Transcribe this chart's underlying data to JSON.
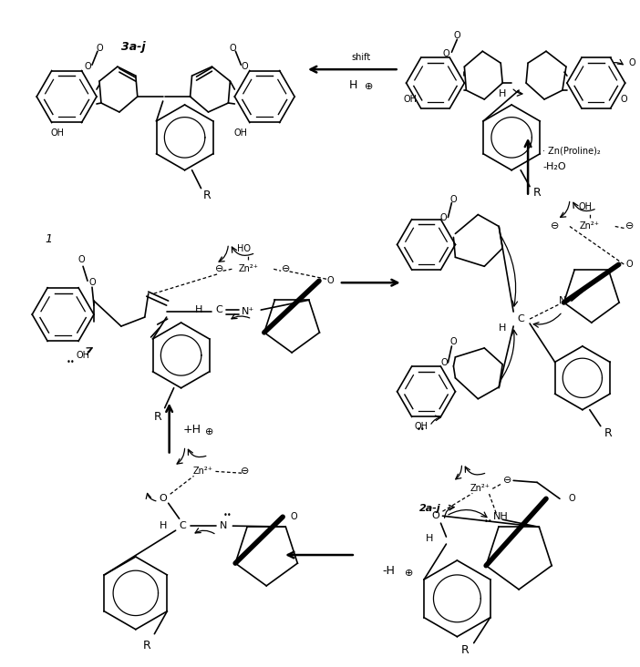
{
  "fig_width": 7.02,
  "fig_height": 7.32,
  "dpi": 100,
  "bg_color": "#ffffff",
  "line_color": "#000000",
  "text_color": "#000000",
  "annotations": {
    "label_2aj": "2a-j",
    "label_1": "1",
    "label_3aj": "3a-j",
    "arrow_top": "-H⊕",
    "arrow_left": "+H⊕",
    "arrow_mid": "→",
    "arrow_bottom_label": "-H₂O  · Zn(Proline)₂",
    "arrow_hshift": "H⊕ shift"
  }
}
